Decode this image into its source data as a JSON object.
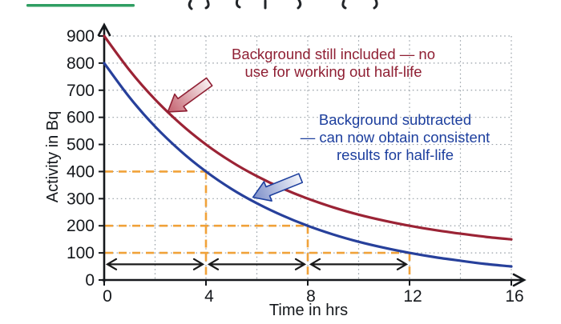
{
  "chart_data": {
    "type": "line",
    "title": "",
    "xlabel": "Time in hrs",
    "ylabel": "Activity in Bq",
    "xlim": [
      0,
      16
    ],
    "ylim": [
      0,
      900
    ],
    "x_ticks": [
      0,
      4,
      8,
      12,
      16
    ],
    "y_ticks": [
      0,
      100,
      200,
      300,
      400,
      500,
      600,
      700,
      800,
      900
    ],
    "grid": {
      "x_step": 2,
      "y_step": 100,
      "style": "dotted",
      "color": "#99a1a8"
    },
    "x": [
      0,
      1,
      2,
      3,
      4,
      5,
      6,
      7,
      8,
      9,
      10,
      11,
      12,
      13,
      14,
      15,
      16
    ],
    "series": [
      {
        "name": "background-included",
        "color": "#9b2335",
        "values": [
          900,
          773,
          666,
          576,
          500,
          436,
          383,
          338,
          300,
          268,
          241,
          219,
          200,
          184,
          171,
          159,
          150
        ]
      },
      {
        "name": "background-subtracted",
        "color": "#27409b",
        "values": [
          800,
          673,
          566,
          476,
          400,
          336,
          283,
          238,
          200,
          168,
          141,
          119,
          100,
          84,
          71,
          59,
          50
        ]
      }
    ],
    "half_life_guides": {
      "color": "#f0a23a",
      "points": [
        {
          "activity": 400,
          "time": 4
        },
        {
          "activity": 200,
          "time": 8
        },
        {
          "activity": 100,
          "time": 12
        }
      ]
    },
    "interval_arrows": {
      "color": "#1a1a1a",
      "y": 58,
      "spans": [
        [
          0,
          4
        ],
        [
          4,
          8
        ],
        [
          8,
          12
        ]
      ]
    },
    "annotations": [
      {
        "name": "background-included-note",
        "color": "#8f1f33",
        "lines": [
          "Background still included — no",
          "use for working out half-life"
        ],
        "arrow_target": {
          "time": 2.5,
          "activity": 620
        },
        "arrow_angle": -36
      },
      {
        "name": "background-subtracted-note",
        "color": "#1d3f9e",
        "lines": [
          "Background subtracted",
          "— can now obtain consistent",
          "results for half-life"
        ],
        "arrow_target": {
          "time": 5.85,
          "activity": 305
        },
        "arrow_angle": -22
      }
    ],
    "legend": null
  },
  "decor": {
    "title_underline_color": "#2f9e62"
  }
}
